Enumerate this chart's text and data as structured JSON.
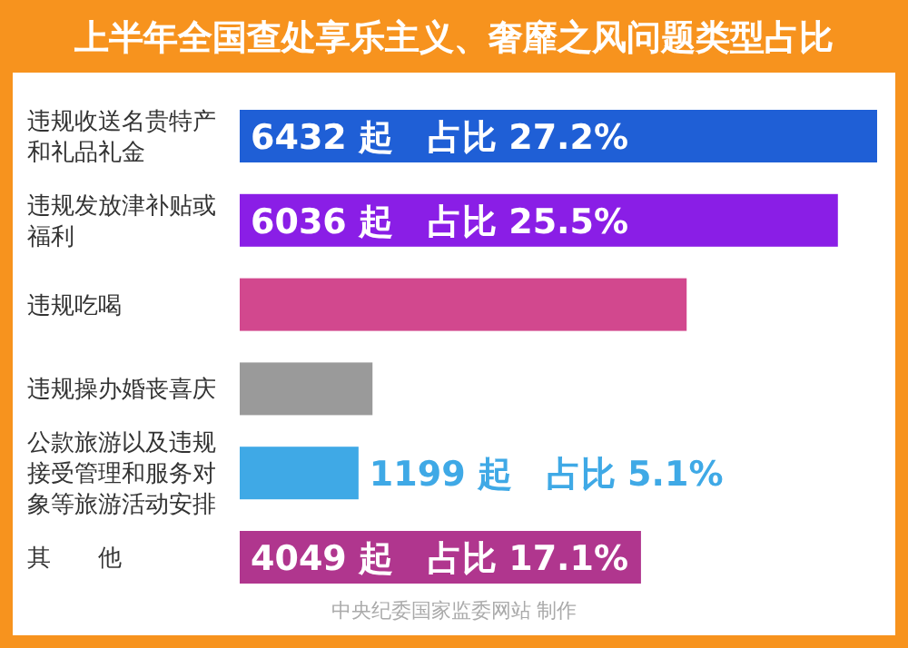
{
  "chart_data": {
    "type": "bar",
    "orientation": "horizontal",
    "title": "上半年全国查处享乐主义、奢靡之风问题类型占比",
    "categories": [
      "违规收送名贵特产和礼品礼金",
      "违规发放津补贴或福利",
      "违规吃喝",
      "违规操办婚丧喜庆",
      "公款旅游以及违规接受管理和服务对象等旅游活动安排",
      "其　　他"
    ],
    "values": [
      6432,
      6036,
      4510,
      1340,
      1199,
      4049
    ],
    "colors": [
      "#1f5fd6",
      "#8a1ee6",
      "#d2488e",
      "#9a9a9a",
      "#3fa9e6",
      "#b0368e"
    ],
    "value_labels": [
      "6432 起　占比 27.2%",
      "6036 起　占比 25.5%",
      null,
      null,
      "1199 起　占比 5.1%",
      "4049 起　占比 17.1%"
    ],
    "annotations": [
      "中央纪委国家监委网站 制作"
    ]
  }
}
